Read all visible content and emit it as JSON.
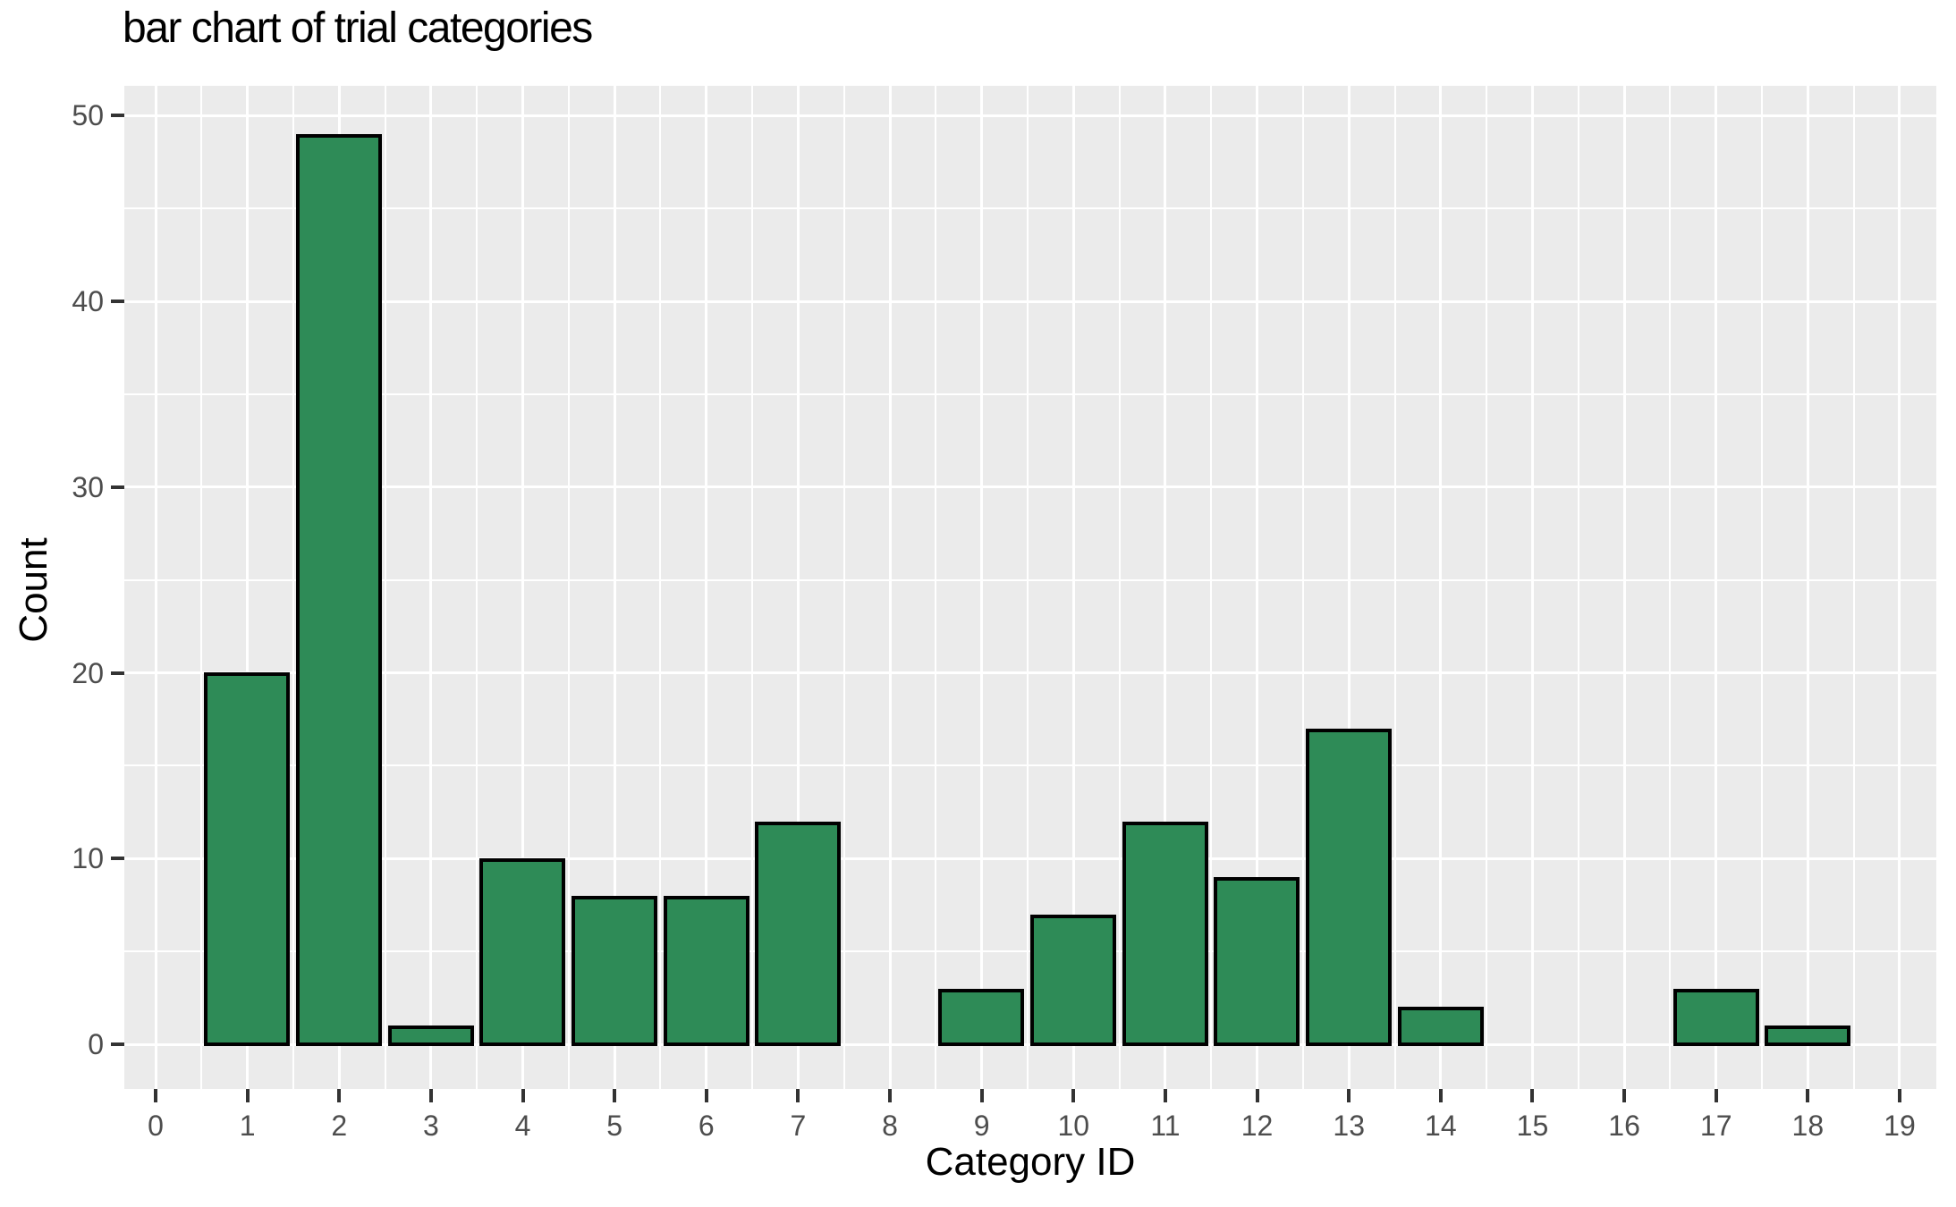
{
  "chart": {
    "title": "bar chart of trial categories",
    "x_axis": {
      "label": "Category ID",
      "tick_labels": [
        "0",
        "1",
        "2",
        "3",
        "4",
        "5",
        "6",
        "7",
        "8",
        "9",
        "10",
        "11",
        "12",
        "13",
        "14",
        "15",
        "16",
        "17",
        "18",
        "19"
      ]
    },
    "y_axis": {
      "label": "Count",
      "tick_labels": [
        "0",
        "10",
        "20",
        "30",
        "40",
        "50"
      ]
    }
  },
  "chart_data": {
    "type": "bar",
    "title": "bar chart of trial categories",
    "xlabel": "Category ID",
    "ylabel": "Count",
    "categories": [
      0,
      1,
      2,
      3,
      4,
      5,
      6,
      7,
      8,
      9,
      10,
      11,
      12,
      13,
      14,
      15,
      16,
      17,
      18,
      19
    ],
    "values": [
      0,
      20,
      49,
      1,
      10,
      8,
      8,
      12,
      0,
      3,
      7,
      12,
      9,
      17,
      2,
      0,
      0,
      3,
      1,
      0
    ],
    "x_ticks": [
      0,
      1,
      2,
      3,
      4,
      5,
      6,
      7,
      8,
      9,
      10,
      11,
      12,
      13,
      14,
      15,
      16,
      17,
      18,
      19
    ],
    "y_ticks": [
      0,
      10,
      20,
      30,
      40,
      50
    ],
    "y_minor_ticks": [
      5,
      15,
      25,
      35,
      45
    ],
    "xlim": [
      -0.35,
      19.35
    ],
    "ylim": [
      -2.45,
      51.45
    ],
    "bar_width": 0.9,
    "grid": "major-and-minor, white on gray panel",
    "legend": "none",
    "colors": {
      "bar_fill": "#2e8b57",
      "bar_stroke": "#000000",
      "panel_background": "#ebebeb",
      "gridline": "#ffffff",
      "tick_label": "#4d4d4d",
      "tick_mark": "#333333",
      "title_text": "#000000",
      "page_background": "#ffffff"
    }
  }
}
